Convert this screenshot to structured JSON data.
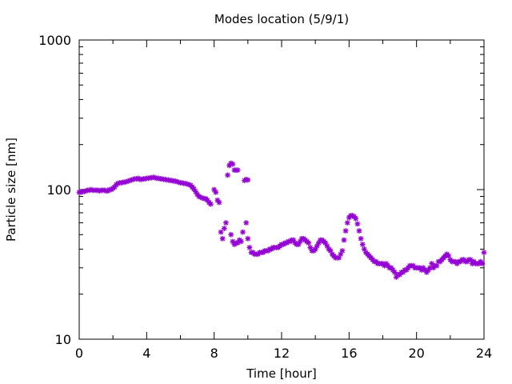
{
  "chart_data": {
    "type": "scatter",
    "title": "Modes location (5/9/1)",
    "xlabel": "Time [hour]",
    "ylabel": "Particle size [nm]",
    "xlim": [
      0,
      24
    ],
    "ylim": [
      10,
      1000
    ],
    "y_scale": "log",
    "x_ticks": [
      0,
      4,
      8,
      12,
      16,
      20,
      24
    ],
    "x_tick_labels": [
      "0",
      "4",
      "8",
      "12",
      "16",
      "20",
      "24"
    ],
    "y_ticks": [
      10,
      100,
      1000
    ],
    "y_tick_labels": [
      "10",
      "100",
      "1000"
    ],
    "grid": false,
    "marker_color": "#9400d3",
    "marker": "asterisk",
    "series": [
      {
        "points": [
          [
            0.0,
            96
          ],
          [
            0.1,
            96
          ],
          [
            0.2,
            97
          ],
          [
            0.3,
            97
          ],
          [
            0.4,
            98
          ],
          [
            0.5,
            99
          ],
          [
            0.6,
            99
          ],
          [
            0.7,
            100
          ],
          [
            0.8,
            99
          ],
          [
            0.9,
            99
          ],
          [
            1.0,
            99
          ],
          [
            1.1,
            99
          ],
          [
            1.2,
            98
          ],
          [
            1.3,
            99
          ],
          [
            1.4,
            99
          ],
          [
            1.5,
            99
          ],
          [
            1.6,
            98
          ],
          [
            1.7,
            98
          ],
          [
            1.8,
            100
          ],
          [
            1.9,
            100
          ],
          [
            2.0,
            102
          ],
          [
            2.1,
            104
          ],
          [
            2.2,
            108
          ],
          [
            2.3,
            110
          ],
          [
            2.4,
            111
          ],
          [
            2.5,
            111
          ],
          [
            2.6,
            112
          ],
          [
            2.7,
            112
          ],
          [
            2.8,
            113
          ],
          [
            2.9,
            114
          ],
          [
            3.0,
            115
          ],
          [
            3.1,
            116
          ],
          [
            3.2,
            117
          ],
          [
            3.3,
            118
          ],
          [
            3.4,
            118
          ],
          [
            3.5,
            119
          ],
          [
            3.6,
            117
          ],
          [
            3.7,
            117
          ],
          [
            3.8,
            118
          ],
          [
            3.9,
            118
          ],
          [
            4.0,
            119
          ],
          [
            4.1,
            119
          ],
          [
            4.2,
            120
          ],
          [
            4.3,
            120
          ],
          [
            4.4,
            121
          ],
          [
            4.5,
            120
          ],
          [
            4.6,
            119
          ],
          [
            4.7,
            119
          ],
          [
            4.8,
            118
          ],
          [
            4.9,
            118
          ],
          [
            5.0,
            117
          ],
          [
            5.1,
            117
          ],
          [
            5.2,
            116
          ],
          [
            5.3,
            116
          ],
          [
            5.4,
            115
          ],
          [
            5.5,
            115
          ],
          [
            5.6,
            114
          ],
          [
            5.7,
            114
          ],
          [
            5.8,
            113
          ],
          [
            5.9,
            112
          ],
          [
            6.0,
            111
          ],
          [
            6.1,
            111
          ],
          [
            6.2,
            110
          ],
          [
            6.3,
            110
          ],
          [
            6.4,
            109
          ],
          [
            6.5,
            108
          ],
          [
            6.6,
            107
          ],
          [
            6.7,
            104
          ],
          [
            6.8,
            101
          ],
          [
            6.9,
            97
          ],
          [
            7.0,
            93
          ],
          [
            7.1,
            90
          ],
          [
            7.2,
            89
          ],
          [
            7.3,
            88
          ],
          [
            7.4,
            87
          ],
          [
            7.5,
            87
          ],
          [
            7.6,
            85
          ],
          [
            7.7,
            82
          ],
          [
            7.8,
            80
          ],
          [
            8.0,
            100
          ],
          [
            8.1,
            96
          ],
          [
            8.2,
            85
          ],
          [
            8.3,
            82
          ],
          [
            8.4,
            52
          ],
          [
            8.5,
            47
          ],
          [
            8.6,
            55
          ],
          [
            8.7,
            60
          ],
          [
            8.8,
            125
          ],
          [
            8.9,
            145
          ],
          [
            9.0,
            150
          ],
          [
            9.1,
            148
          ],
          [
            9.2,
            135
          ],
          [
            9.3,
            135
          ],
          [
            9.4,
            135
          ],
          [
            9.0,
            50
          ],
          [
            9.1,
            45
          ],
          [
            9.2,
            43
          ],
          [
            9.3,
            44
          ],
          [
            9.4,
            44
          ],
          [
            9.5,
            46
          ],
          [
            9.6,
            45
          ],
          [
            9.7,
            52
          ],
          [
            9.8,
            115
          ],
          [
            9.9,
            117
          ],
          [
            10.0,
            116
          ],
          [
            9.9,
            60
          ],
          [
            10.0,
            47
          ],
          [
            10.1,
            41
          ],
          [
            10.2,
            38
          ],
          [
            10.3,
            38
          ],
          [
            10.4,
            37
          ],
          [
            10.5,
            37
          ],
          [
            10.6,
            37
          ],
          [
            10.7,
            38
          ],
          [
            10.8,
            38
          ],
          [
            10.9,
            38
          ],
          [
            11.0,
            39
          ],
          [
            11.1,
            39
          ],
          [
            11.2,
            39
          ],
          [
            11.3,
            40
          ],
          [
            11.4,
            40
          ],
          [
            11.5,
            41
          ],
          [
            11.6,
            41
          ],
          [
            11.7,
            41
          ],
          [
            11.8,
            41
          ],
          [
            11.9,
            42
          ],
          [
            12.0,
            43
          ],
          [
            12.1,
            43
          ],
          [
            12.2,
            44
          ],
          [
            12.3,
            44
          ],
          [
            12.4,
            45
          ],
          [
            12.5,
            45
          ],
          [
            12.6,
            46
          ],
          [
            12.7,
            46
          ],
          [
            12.8,
            44
          ],
          [
            12.9,
            43
          ],
          [
            13.0,
            43
          ],
          [
            13.1,
            45
          ],
          [
            13.2,
            47
          ],
          [
            13.3,
            47
          ],
          [
            13.4,
            46
          ],
          [
            13.5,
            45
          ],
          [
            13.6,
            44
          ],
          [
            13.7,
            41
          ],
          [
            13.8,
            39
          ],
          [
            13.9,
            39
          ],
          [
            14.0,
            40
          ],
          [
            14.1,
            42
          ],
          [
            14.2,
            44
          ],
          [
            14.3,
            46
          ],
          [
            14.4,
            46
          ],
          [
            14.5,
            45
          ],
          [
            14.6,
            44
          ],
          [
            14.7,
            42
          ],
          [
            14.8,
            40
          ],
          [
            14.9,
            39
          ],
          [
            15.0,
            37
          ],
          [
            15.1,
            36
          ],
          [
            15.2,
            35
          ],
          [
            15.3,
            35
          ],
          [
            15.4,
            35
          ],
          [
            15.5,
            37
          ],
          [
            15.6,
            39
          ],
          [
            15.7,
            46
          ],
          [
            15.8,
            53
          ],
          [
            15.9,
            60
          ],
          [
            16.0,
            65
          ],
          [
            16.1,
            67
          ],
          [
            16.2,
            67
          ],
          [
            16.3,
            66
          ],
          [
            16.4,
            64
          ],
          [
            16.5,
            59
          ],
          [
            16.6,
            53
          ],
          [
            16.7,
            47
          ],
          [
            16.8,
            43
          ],
          [
            16.9,
            40
          ],
          [
            17.0,
            38
          ],
          [
            17.1,
            37
          ],
          [
            17.2,
            36
          ],
          [
            17.3,
            35
          ],
          [
            17.4,
            34
          ],
          [
            17.5,
            33
          ],
          [
            17.6,
            33
          ],
          [
            17.7,
            32
          ],
          [
            17.8,
            32
          ],
          [
            17.9,
            32
          ],
          [
            18.0,
            32
          ],
          [
            18.1,
            31
          ],
          [
            18.2,
            32
          ],
          [
            18.3,
            31
          ],
          [
            18.4,
            30
          ],
          [
            18.5,
            30
          ],
          [
            18.6,
            29
          ],
          [
            18.7,
            28
          ],
          [
            18.8,
            26
          ],
          [
            18.9,
            27
          ],
          [
            19.0,
            27
          ],
          [
            19.1,
            28
          ],
          [
            19.2,
            28
          ],
          [
            19.3,
            29
          ],
          [
            19.4,
            29
          ],
          [
            19.5,
            30
          ],
          [
            19.6,
            31
          ],
          [
            19.7,
            31
          ],
          [
            19.8,
            31
          ],
          [
            19.9,
            30
          ],
          [
            20.0,
            30
          ],
          [
            20.1,
            30
          ],
          [
            20.2,
            30
          ],
          [
            20.3,
            29
          ],
          [
            20.4,
            30
          ],
          [
            20.5,
            29
          ],
          [
            20.6,
            28
          ],
          [
            20.7,
            29
          ],
          [
            20.8,
            30
          ],
          [
            20.9,
            32
          ],
          [
            21.0,
            30
          ],
          [
            21.1,
            31
          ],
          [
            21.2,
            31
          ],
          [
            21.3,
            33
          ],
          [
            21.4,
            33
          ],
          [
            21.5,
            34
          ],
          [
            21.6,
            35
          ],
          [
            21.7,
            36
          ],
          [
            21.8,
            37
          ],
          [
            21.9,
            36
          ],
          [
            22.0,
            34
          ],
          [
            22.1,
            33
          ],
          [
            22.2,
            33
          ],
          [
            22.3,
            33
          ],
          [
            22.4,
            32
          ],
          [
            22.5,
            33
          ],
          [
            22.6,
            33
          ],
          [
            22.7,
            34
          ],
          [
            22.8,
            34
          ],
          [
            22.9,
            33
          ],
          [
            23.0,
            33
          ],
          [
            23.1,
            34
          ],
          [
            23.2,
            34
          ],
          [
            23.3,
            32
          ],
          [
            23.4,
            33
          ],
          [
            23.5,
            32
          ],
          [
            23.6,
            32
          ],
          [
            23.7,
            32
          ],
          [
            23.8,
            33
          ],
          [
            23.9,
            32
          ],
          [
            24.0,
            38
          ]
        ]
      }
    ]
  }
}
